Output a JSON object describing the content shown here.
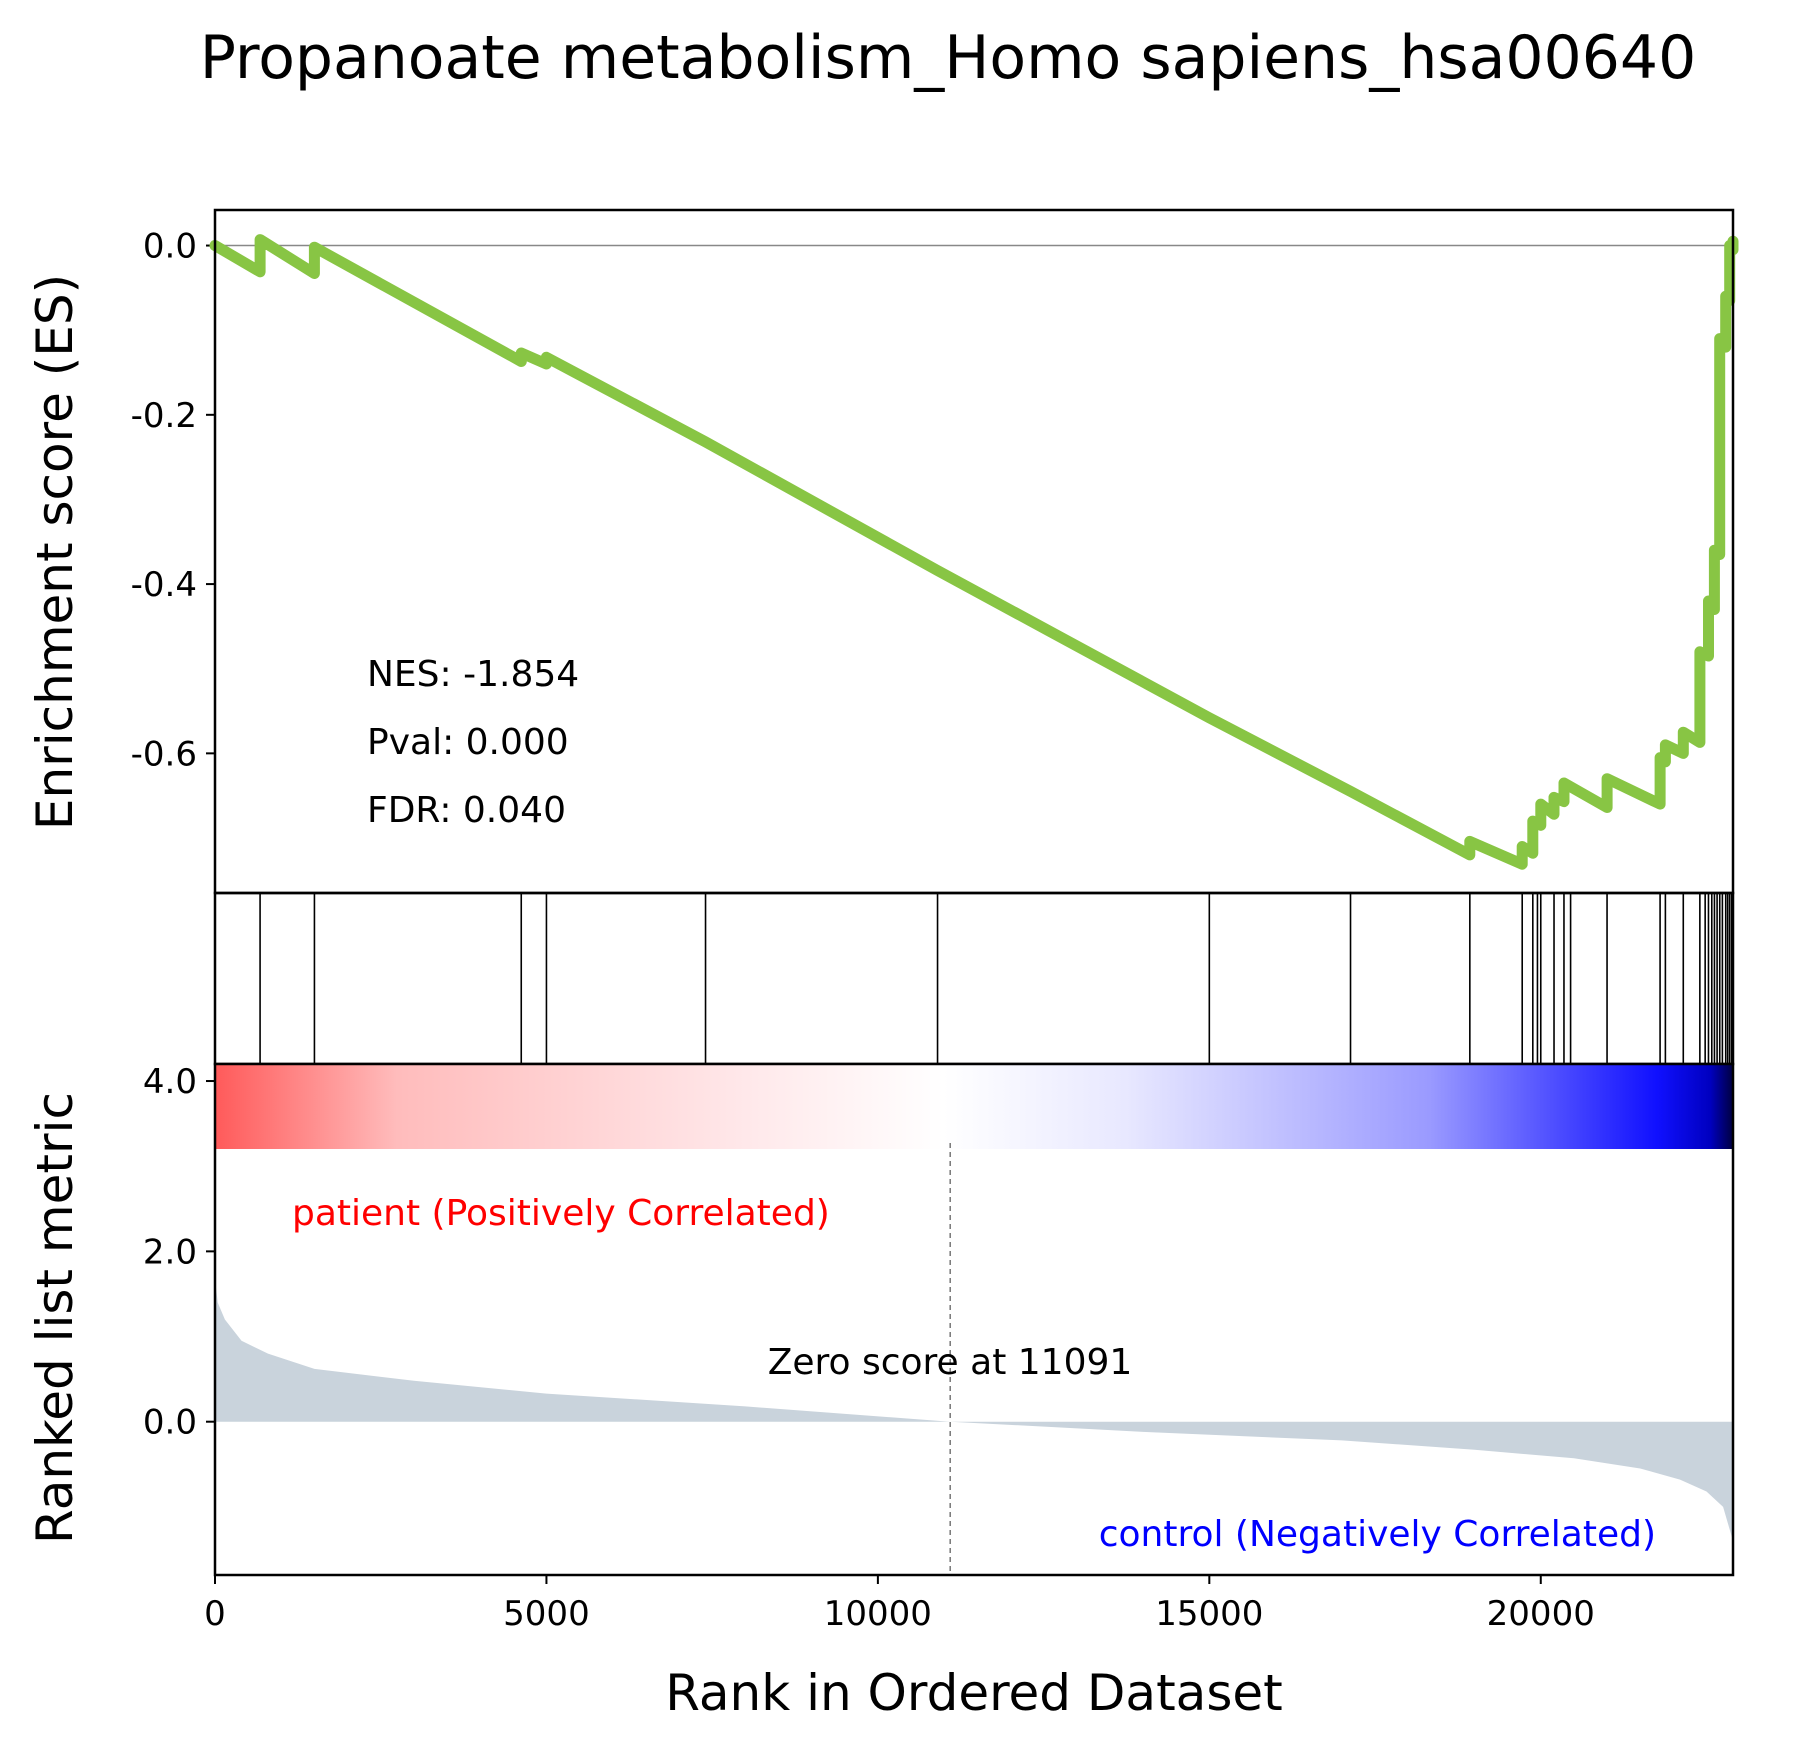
{
  "chart_data": {
    "type": "line",
    "title": "Propanoate metabolism_Homo sapiens_hsa00640",
    "xlabel": "Rank in Ordered Dataset",
    "xlim": [
      0,
      22900
    ],
    "x_ticks": [
      "0",
      "5000",
      "10000",
      "15000",
      "20000"
    ],
    "x_tick_values": [
      0,
      5000,
      10000,
      15000,
      20000
    ],
    "es_panel": {
      "ylabel": "Enrichment score (ES)",
      "ylim": [
        -0.765,
        0.042
      ],
      "y_ticks": [
        "0.0",
        "-0.2",
        "-0.4",
        "-0.6"
      ],
      "y_tick_values": [
        0.0,
        -0.2,
        -0.4,
        -0.6
      ],
      "zero_line": true,
      "line_color": "#88c544",
      "stats": [
        "NES: -1.854",
        "Pval: 0.000",
        "FDR: 0.040"
      ],
      "series": [
        {
          "x": [
            0,
            680,
            680,
            1500,
            1500,
            4620,
            4620,
            5000,
            5000,
            7400,
            10900,
            15000,
            17130,
            18930,
            18930,
            19720,
            19720,
            19880,
            19880,
            20000,
            20000,
            20200,
            20200,
            20350,
            20350,
            21000,
            21000,
            21800,
            21800,
            21880,
            21880,
            22150,
            22150,
            22400,
            22400,
            22530,
            22530,
            22620,
            22620,
            22700,
            22700,
            22790,
            22790,
            22850,
            22850,
            22900,
            22900
          ],
          "y": [
            0.0,
            -0.031,
            0.007,
            -0.033,
            -0.002,
            -0.137,
            -0.127,
            -0.14,
            -0.132,
            -0.232,
            -0.384,
            -0.558,
            -0.645,
            -0.72,
            -0.704,
            -0.731,
            -0.71,
            -0.718,
            -0.68,
            -0.685,
            -0.66,
            -0.672,
            -0.652,
            -0.657,
            -0.635,
            -0.664,
            -0.63,
            -0.66,
            -0.605,
            -0.61,
            -0.59,
            -0.6,
            -0.575,
            -0.587,
            -0.48,
            -0.485,
            -0.42,
            -0.43,
            -0.36,
            -0.365,
            -0.11,
            -0.12,
            -0.06,
            -0.065,
            0.0,
            -0.005,
            0.005
          ]
        }
      ]
    },
    "hits_panel": {
      "hits": [
        680,
        1500,
        4620,
        5000,
        7400,
        10900,
        15000,
        17130,
        18930,
        19720,
        19880,
        19950,
        20000,
        20200,
        20350,
        20450,
        21000,
        21800,
        21880,
        22150,
        22400,
        22480,
        22530,
        22580,
        22620,
        22660,
        22700,
        22740,
        22790,
        22820,
        22850,
        22880
      ]
    },
    "metric_panel": {
      "ylabel": "Ranked list metric",
      "ylim": [
        -1.8,
        4.2
      ],
      "y_ticks": [
        "4.0",
        "2.0",
        "0.0"
      ],
      "y_tick_values": [
        4.0,
        2.0,
        0.0
      ],
      "fill_color": "#c9d3dc",
      "zero_score_rank": 11091,
      "zero_label": "Zero score at 11091",
      "pos_label": "patient (Positively Correlated)",
      "neg_label": "control (Negatively Correlated)",
      "pos_color": "#ff0000",
      "neg_color": "#0000ff",
      "curve": {
        "x": [
          0,
          40,
          150,
          400,
          800,
          1500,
          3000,
          5000,
          8000,
          11091,
          14000,
          17000,
          19000,
          20500,
          21500,
          22100,
          22500,
          22750,
          22900
        ],
        "y": [
          1.68,
          1.4,
          1.2,
          0.95,
          0.8,
          0.62,
          0.48,
          0.33,
          0.18,
          0.0,
          -0.12,
          -0.22,
          -0.33,
          -0.43,
          -0.55,
          -0.68,
          -0.82,
          -1.0,
          -1.4
        ]
      }
    }
  }
}
